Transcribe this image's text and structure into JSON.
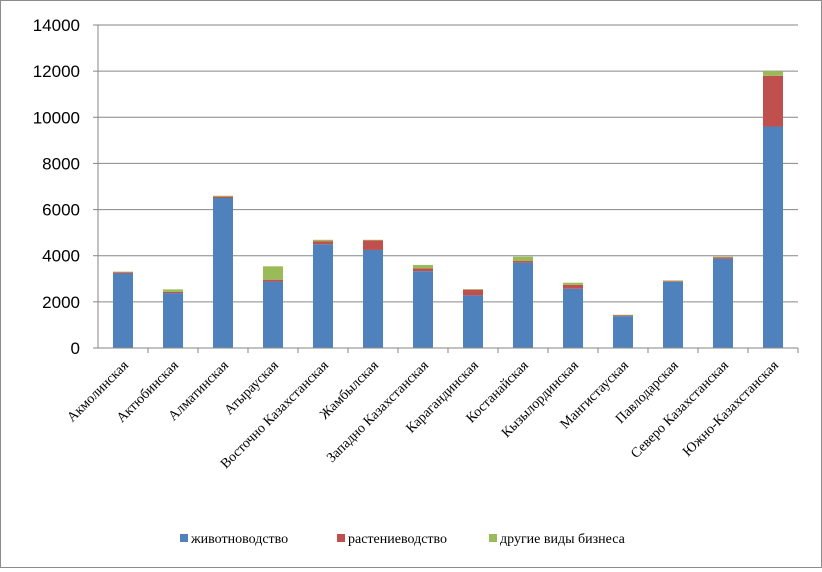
{
  "chart_data": {
    "type": "bar",
    "stacked": true,
    "categories": [
      "Акмолинская",
      "Актюбинская",
      "Алматинская",
      "Атырауская",
      "Восточно Казахстанская",
      "Жамбылская",
      "Западно Казахстанская",
      "Карагандинская",
      "Костанайская",
      "Кызылординская",
      "Мангистауская",
      "Павлодарская",
      "Северо Казахстанская",
      "Южно-Казахстанская"
    ],
    "series": [
      {
        "name": "животноводство",
        "color": "#4f81bd",
        "values": [
          3230,
          2380,
          6500,
          2880,
          4500,
          4250,
          3330,
          2280,
          3700,
          2570,
          1380,
          2870,
          3870,
          9600
        ]
      },
      {
        "name": "растениеводство",
        "color": "#c0504d",
        "values": [
          50,
          50,
          60,
          80,
          130,
          420,
          120,
          250,
          70,
          170,
          30,
          30,
          60,
          2200
        ]
      },
      {
        "name": "другие виды бизнеса",
        "color": "#9bbb59",
        "values": [
          30,
          110,
          40,
          580,
          60,
          20,
          150,
          20,
          190,
          90,
          30,
          30,
          30,
          200
        ]
      }
    ],
    "ylim": [
      0,
      14000
    ],
    "yticks": [
      "0",
      "2000",
      "4000",
      "6000",
      "8000",
      "10000",
      "12000",
      "14000"
    ],
    "grid": true,
    "legend": "bottom"
  }
}
